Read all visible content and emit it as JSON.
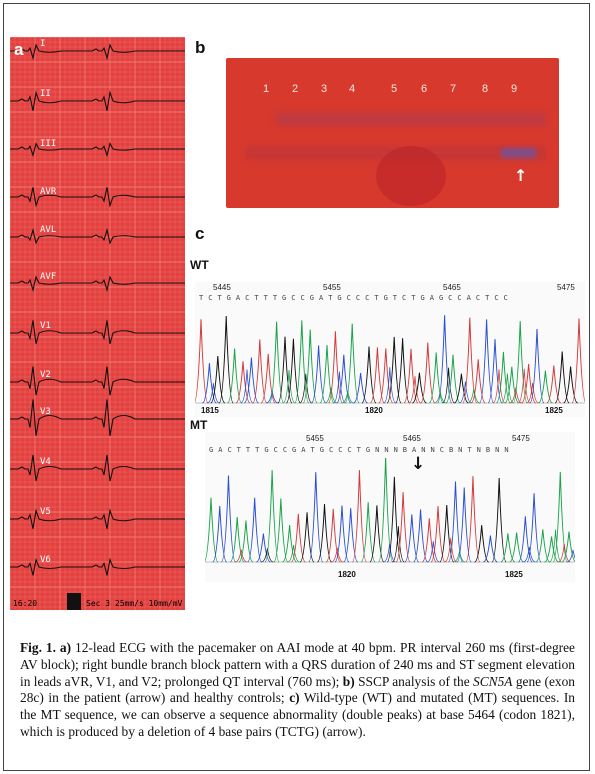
{
  "panels": {
    "a": "a",
    "b": "b",
    "c": "c"
  },
  "ecg": {
    "leads": [
      "I",
      "II",
      "III",
      "AVR",
      "AVL",
      "AVF",
      "V1",
      "V2",
      "V3",
      "V4",
      "V5",
      "V6"
    ],
    "footer_time": "16:20",
    "footer_settings": "Sec  3  25mm/s   10mm/mV"
  },
  "gel": {
    "lanes": [
      "1",
      "2",
      "3",
      "4",
      "5",
      "6",
      "7",
      "8",
      "9"
    ],
    "arrow": "↑"
  },
  "wt": {
    "label": "WT",
    "positions": [
      "5445",
      "5455",
      "5465",
      "5475"
    ],
    "bases": "T C T G A C T T T G C C G A T G C C C T G T C T G A G C C A C T C C",
    "codons": [
      "1815",
      "1820",
      "1825"
    ]
  },
  "mt": {
    "label": "MT",
    "positions": [
      "5455",
      "5465",
      "5475"
    ],
    "bases": "G A C T T T G C C G A T G C C C T G N N N B A N N C B N T N B N N",
    "codons": [
      "1820",
      "1825"
    ],
    "arrow": "↓"
  },
  "caption": {
    "fig": "Fig. 1.",
    "a_label": "a)",
    "a_text": " 12-lead ECG with the pacemaker on AAI mode at 40 bpm. PR interval 260 ms (first-degree AV block); right bundle branch block pattern with a QRS duration of 240 ms and ST segment elevation in leads aVR, V1, and V2; prolonged QT interval (760 ms); ",
    "b_label": "b)",
    "b_text_1": " SSCP analysis of the ",
    "gene": "SCN5A",
    "b_text_2": " gene (exon 28c) in the patient (arrow) and healthy controls; ",
    "c_label": "c)",
    "c_text": " Wild-type (WT) and mutated (MT) sequences. In the MT sequence, we can observe a sequence abnormality (double peaks) at base 5464 (codon 1821), which is produced by a deletion of 4 base pairs (TCTG) (arrow)."
  }
}
